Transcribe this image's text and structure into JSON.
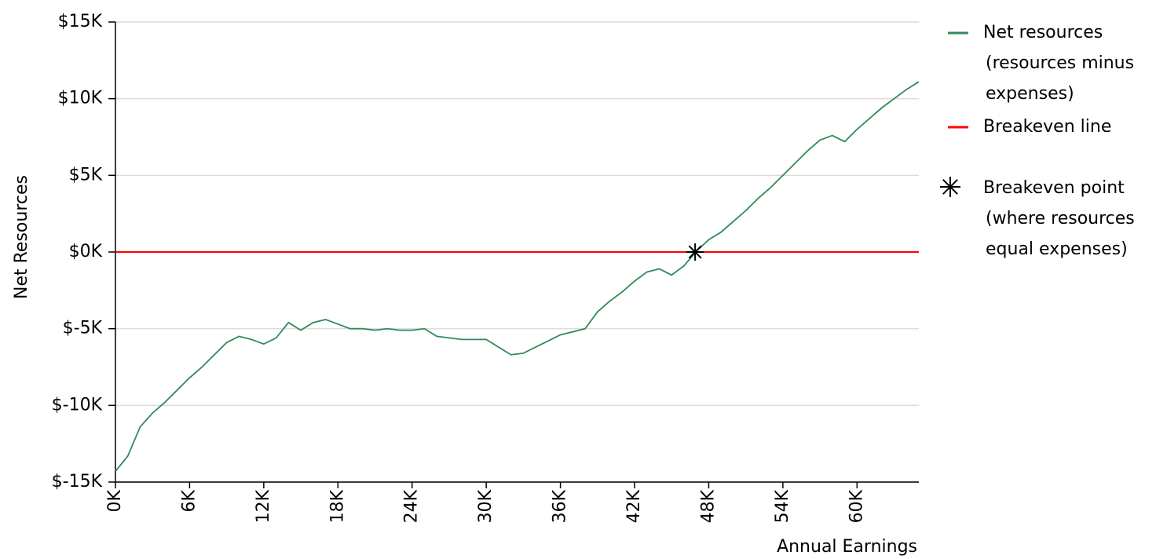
{
  "chart_data": {
    "type": "line",
    "x_label": "Annual Earnings",
    "y_label": "Net Resources",
    "x": [
      0,
      1000,
      2000,
      3000,
      4000,
      5000,
      6000,
      7000,
      8000,
      9000,
      10000,
      11000,
      12000,
      13000,
      14000,
      15000,
      16000,
      17000,
      18000,
      19000,
      20000,
      21000,
      22000,
      23000,
      24000,
      25000,
      26000,
      27000,
      28000,
      29000,
      30000,
      31000,
      32000,
      33000,
      34000,
      35000,
      36000,
      37000,
      38000,
      39000,
      40000,
      41000,
      42000,
      43000,
      44000,
      45000,
      46000,
      47000,
      48000,
      49000,
      50000,
      51000,
      52000,
      53000,
      54000,
      55000,
      56000,
      57000,
      58000,
      59000,
      60000,
      61000,
      62000,
      63000,
      64000,
      65000
    ],
    "series": [
      {
        "name": [
          "Net resources",
          "(resources minus",
          "expenses)"
        ],
        "color": "#2e8b57",
        "values": [
          -14300,
          -13300,
          -11400,
          -10500,
          -9800,
          -9000,
          -8200,
          -7500,
          -6700,
          -5900,
          -5500,
          -5700,
          -6000,
          -5600,
          -4600,
          -5100,
          -4600,
          -4400,
          -4700,
          -5000,
          -5000,
          -5100,
          -5000,
          -5100,
          -5100,
          -5000,
          -5500,
          -5600,
          -5700,
          -5700,
          -5700,
          -6200,
          -6700,
          -6600,
          -6200,
          -5800,
          -5400,
          -5200,
          -5000,
          -3900,
          -3200,
          -2600,
          -1900,
          -1300,
          -1100,
          -1500,
          -900,
          50,
          800,
          1300,
          2000,
          2700,
          3500,
          4200,
          5000,
          5800,
          6600,
          7300,
          7600,
          7200,
          8000,
          8700,
          9400,
          10000,
          10600,
          11100
        ]
      }
    ],
    "reference_line": {
      "name": [
        "Breakeven line"
      ],
      "color": "#ff0000",
      "y": 0
    },
    "marker": {
      "name": [
        "Breakeven point",
        "(where resources",
        "equal expenses)"
      ],
      "color": "#000000",
      "x": 46900,
      "y": 0
    },
    "xlim": [
      0,
      65000
    ],
    "xticks": [
      {
        "value": 0,
        "label": "0K"
      },
      {
        "value": 6000,
        "label": "6K"
      },
      {
        "value": 12000,
        "label": "12K"
      },
      {
        "value": 18000,
        "label": "18K"
      },
      {
        "value": 24000,
        "label": "24K"
      },
      {
        "value": 30000,
        "label": "30K"
      },
      {
        "value": 36000,
        "label": "36K"
      },
      {
        "value": 42000,
        "label": "42K"
      },
      {
        "value": 48000,
        "label": "48K"
      },
      {
        "value": 54000,
        "label": "54K"
      },
      {
        "value": 60000,
        "label": "60K"
      }
    ],
    "ylim": [
      -15000,
      15000
    ],
    "yticks": [
      {
        "value": -15000,
        "label": "$-15K"
      },
      {
        "value": -10000,
        "label": "$-10K"
      },
      {
        "value": -5000,
        "label": "$-5K"
      },
      {
        "value": 0,
        "label": "$0K"
      },
      {
        "value": 5000,
        "label": "$5K"
      },
      {
        "value": 10000,
        "label": "$10K"
      },
      {
        "value": 15000,
        "label": "$15K"
      }
    ],
    "grid": true
  }
}
